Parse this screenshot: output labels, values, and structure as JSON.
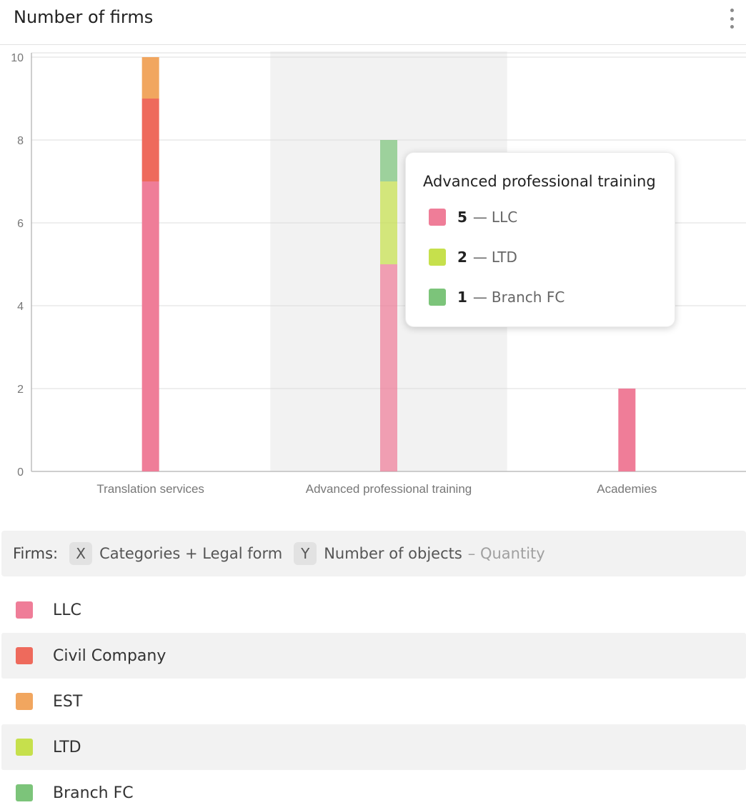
{
  "header": {
    "title": "Number of firms"
  },
  "colors": {
    "LLC": "#ef7d98",
    "Civil Company": "#ee6a5c",
    "EST": "#f1a65f",
    "LTD": "#c6e04c",
    "Branch FC": "#7cc47a"
  },
  "chart_data": {
    "type": "bar",
    "stacked": true,
    "categories": [
      "Translation services",
      "Advanced professional training",
      "Academies"
    ],
    "series": [
      {
        "name": "LLC",
        "values": [
          7,
          5,
          2
        ]
      },
      {
        "name": "Civil Company",
        "values": [
          2,
          0,
          0
        ]
      },
      {
        "name": "EST",
        "values": [
          1,
          0,
          0
        ]
      },
      {
        "name": "LTD",
        "values": [
          0,
          2,
          0
        ]
      },
      {
        "name": "Branch FC",
        "values": [
          0,
          1,
          0
        ]
      }
    ],
    "ylim": [
      0,
      10
    ],
    "yticks": [
      0,
      2,
      4,
      6,
      8,
      10
    ],
    "grid": true,
    "highlighted_category": "Advanced professional training"
  },
  "tooltip": {
    "title": "Advanced professional training",
    "rows": [
      {
        "value": "5",
        "name": "LLC",
        "icon": "llc-swatch"
      },
      {
        "value": "2",
        "name": "LTD",
        "icon": "ltd-swatch"
      },
      {
        "value": "1",
        "name": "Branch FC",
        "icon": "branch-fc-swatch"
      }
    ]
  },
  "axis_info": {
    "label": "Firms:",
    "x_key": "X",
    "x_text": "Categories + Legal form",
    "y_key": "Y",
    "y_text": "Number of objects",
    "aggregation": "– Quantity"
  },
  "legend": {
    "items": [
      {
        "name": "LLC"
      },
      {
        "name": "Civil Company"
      },
      {
        "name": "EST"
      },
      {
        "name": "LTD"
      },
      {
        "name": "Branch FC"
      }
    ]
  }
}
